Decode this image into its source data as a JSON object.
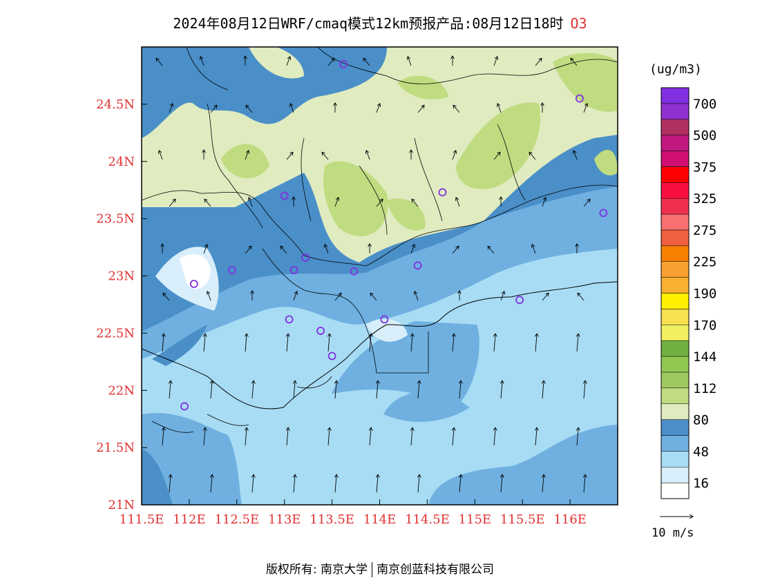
{
  "title": {
    "text": "2024年08月12日WRF/cmaq模式12km预报产品:08月12日18时",
    "species": "O3"
  },
  "map": {
    "lon_range": [
      111.5,
      116.5
    ],
    "lat_range": [
      21.0,
      25.0
    ],
    "x_ticks": [
      "111.5E",
      "112E",
      "112.5E",
      "113E",
      "113.5E",
      "114E",
      "114.5E",
      "115E",
      "115.5E",
      "116E"
    ],
    "x_tick_values": [
      111.5,
      112,
      112.5,
      113,
      113.5,
      114,
      114.5,
      115,
      115.5,
      116
    ],
    "y_ticks": [
      "21N",
      "21.5N",
      "22N",
      "22.5N",
      "23N",
      "23.5N",
      "24N",
      "24.5N"
    ],
    "y_tick_values": [
      21,
      21.5,
      22,
      22.5,
      23,
      23.5,
      24,
      24.5
    ],
    "tick_color": "#e03030",
    "stations": [
      {
        "lon": 113.62,
        "lat": 24.85
      },
      {
        "lon": 116.1,
        "lat": 24.55
      },
      {
        "lon": 113.0,
        "lat": 23.7
      },
      {
        "lon": 114.66,
        "lat": 23.73
      },
      {
        "lon": 116.35,
        "lat": 23.55
      },
      {
        "lon": 112.45,
        "lat": 23.05
      },
      {
        "lon": 112.05,
        "lat": 22.93
      },
      {
        "lon": 113.22,
        "lat": 23.16
      },
      {
        "lon": 113.1,
        "lat": 23.05
      },
      {
        "lon": 113.73,
        "lat": 23.04
      },
      {
        "lon": 114.4,
        "lat": 23.09
      },
      {
        "lon": 115.47,
        "lat": 22.79
      },
      {
        "lon": 113.05,
        "lat": 22.62
      },
      {
        "lon": 113.38,
        "lat": 22.52
      },
      {
        "lon": 114.05,
        "lat": 22.62
      },
      {
        "lon": 113.5,
        "lat": 22.3
      },
      {
        "lon": 111.95,
        "lat": 21.86
      }
    ]
  },
  "legend": {
    "unit": "(ug/m3)",
    "colors": [
      "#ffffff",
      "#d8eefa",
      "#a8dcf5",
      "#6fb0e0",
      "#4a8fc8",
      "#e0ebc0",
      "#c0dc80",
      "#a0c860",
      "#90c850",
      "#70b040",
      "#f0f060",
      "#f8e050",
      "#fff000",
      "#f8b030",
      "#f8a030",
      "#f88000",
      "#f06040",
      "#f87070",
      "#f03050",
      "#f81040",
      "#ff0000",
      "#d01070",
      "#c01880",
      "#b03060",
      "#9030d0",
      "#8030e0"
    ],
    "labels": [
      {
        "text": "16",
        "index": 1
      },
      {
        "text": "48",
        "index": 3
      },
      {
        "text": "80",
        "index": 5
      },
      {
        "text": "112",
        "index": 7
      },
      {
        "text": "144",
        "index": 9
      },
      {
        "text": "170",
        "index": 11
      },
      {
        "text": "190",
        "index": 13
      },
      {
        "text": "225",
        "index": 15
      },
      {
        "text": "275",
        "index": 17
      },
      {
        "text": "325",
        "index": 19
      },
      {
        "text": "375",
        "index": 21
      },
      {
        "text": "500",
        "index": 23
      },
      {
        "text": "700",
        "index": 25
      }
    ]
  },
  "wind_scale": {
    "label": "10 m/s"
  },
  "footer": {
    "left": "版权所有: 南京大学",
    "right": "南京创蓝科技有限公司"
  }
}
